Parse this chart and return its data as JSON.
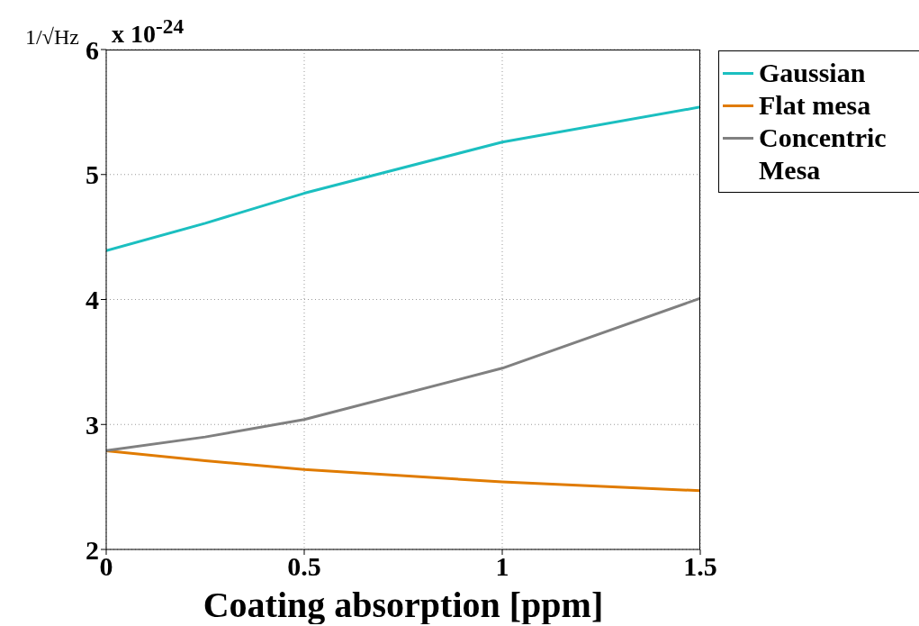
{
  "chart_data": {
    "type": "line",
    "xlabel": "Coating absorption [ppm]",
    "ylabel": "1/√Hz",
    "annotations": [
      "x 10$^{-24}$"
    ],
    "x": [
      0,
      0.25,
      0.5,
      1,
      1.5
    ],
    "series": [
      {
        "name": "Gaussian",
        "color": "#1bbfc0",
        "values": [
          4.39,
          4.61,
          4.85,
          5.26,
          5.54
        ]
      },
      {
        "name": "Flat mesa",
        "color": "#e07b00",
        "values": [
          2.79,
          2.71,
          2.64,
          2.54,
          2.47
        ]
      },
      {
        "name": "Concentric Mesa",
        "color": "#808080",
        "values": [
          2.79,
          2.9,
          3.04,
          3.45,
          4.01
        ]
      }
    ],
    "xlim": [
      0,
      1.5
    ],
    "xticks": [
      0,
      0.5,
      1,
      1.5
    ],
    "ylim": [
      2,
      6
    ],
    "yticks": [
      2,
      3,
      4,
      5,
      6
    ],
    "grid": true,
    "legend": "top right"
  }
}
